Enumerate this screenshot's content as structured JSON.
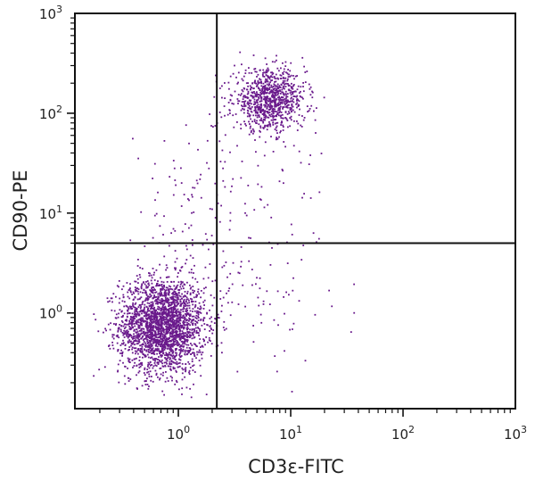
{
  "chart_data": {
    "type": "scatter",
    "xlabel": "CD3ε-FITC",
    "ylabel": "CD90-PE",
    "x_scale": "log",
    "y_scale": "log",
    "xlim": [
      0.12,
      1000
    ],
    "ylim": [
      0.11,
      1000
    ],
    "x_ticks": [
      {
        "base": "10",
        "exp": "0"
      },
      {
        "base": "10",
        "exp": "1"
      },
      {
        "base": "10",
        "exp": "2"
      },
      {
        "base": "10",
        "exp": "3"
      }
    ],
    "y_ticks": [
      {
        "base": "10",
        "exp": "0"
      },
      {
        "base": "10",
        "exp": "1"
      },
      {
        "base": "10",
        "exp": "2"
      },
      {
        "base": "10",
        "exp": "3"
      }
    ],
    "x_tick_values": [
      1,
      10,
      100,
      1000
    ],
    "y_tick_values": [
      1,
      10,
      100,
      1000
    ],
    "gate": {
      "x": 2.2,
      "y": 5
    },
    "grid": false,
    "legend": "none",
    "point_color": "#6a1a8c",
    "populations": [
      {
        "center_x": 0.72,
        "center_y": 0.75,
        "count": 2400,
        "spread_log_x": 0.19,
        "spread_log_y": 0.24
      },
      {
        "center_x": 6.5,
        "center_y": 135,
        "count": 900,
        "spread_log_x": 0.16,
        "spread_log_y": 0.15
      },
      {
        "center_x": 4.5,
        "center_y": 14,
        "count": 90,
        "spread_log_x": 0.35,
        "spread_log_y": 0.55
      },
      {
        "center_x": 1.1,
        "center_y": 10,
        "count": 80,
        "spread_log_x": 0.25,
        "spread_log_y": 0.45
      },
      {
        "center_x": 6.0,
        "center_y": 1.6,
        "count": 60,
        "spread_log_x": 0.3,
        "spread_log_y": 0.35
      }
    ]
  }
}
